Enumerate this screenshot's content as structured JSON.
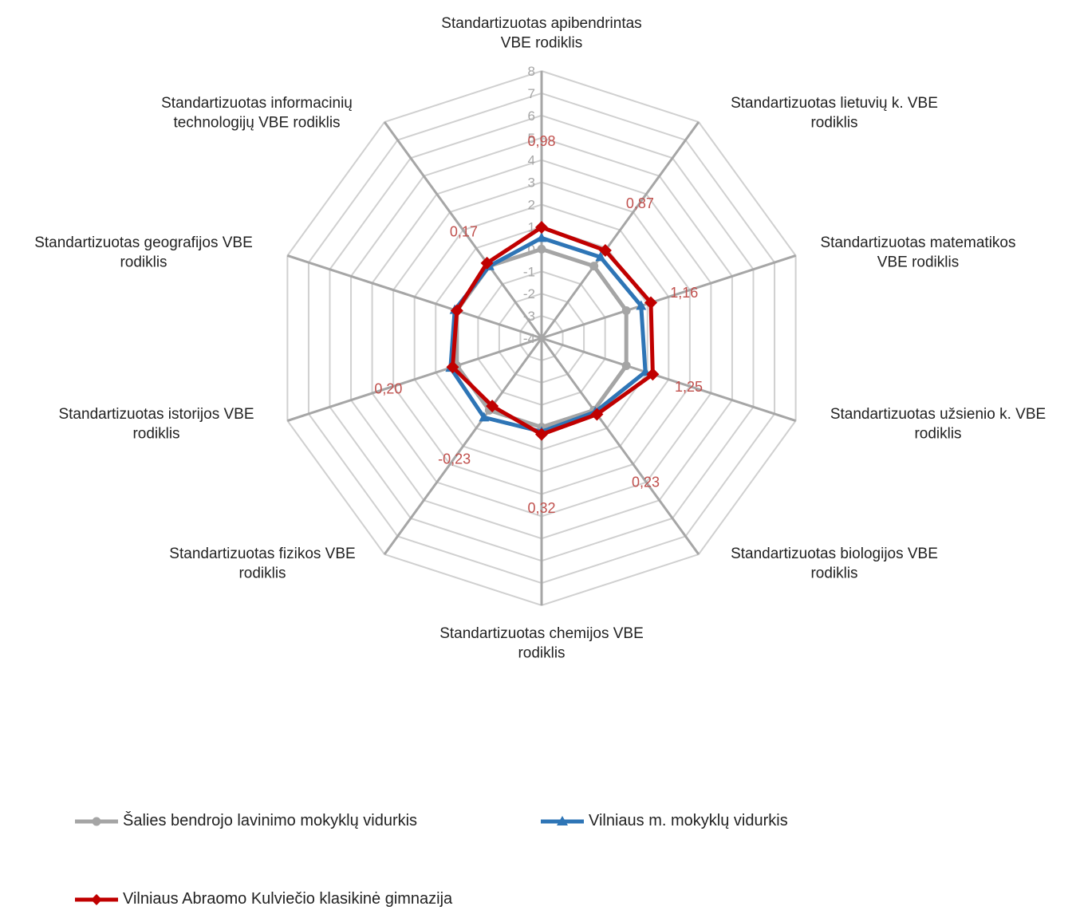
{
  "chart_data": {
    "type": "radar",
    "categories": [
      "Standartizuotas apibendrintas VBE rodiklis",
      "Standartizuotas lietuvių k. VBE rodiklis",
      "Standartizuotas matematikos VBE rodiklis",
      "Standartizuotas užsienio k. VBE rodiklis",
      "Standartizuotas biologijos VBE rodiklis",
      "Standartizuotas chemijos  VBE rodiklis",
      "Standartizuotas fizikos  VBE rodiklis",
      "Standartizuotas istorijos VBE rodiklis",
      "Standartizuotas geografijos VBE rodiklis",
      "Standartizuotas informacinių technologijų VBE rodiklis"
    ],
    "category_lines": [
      [
        "Standartizuotas apibendrintas",
        "VBE rodiklis"
      ],
      [
        "Standartizuotas lietuvių k. VBE",
        "rodiklis"
      ],
      [
        "Standartizuotas matematikos",
        "VBE rodiklis"
      ],
      [
        "Standartizuotas užsienio k. VBE",
        "rodiklis"
      ],
      [
        "Standartizuotas biologijos VBE",
        "rodiklis"
      ],
      [
        "Standartizuotas chemijos  VBE",
        "rodiklis"
      ],
      [
        "Standartizuotas fizikos  VBE",
        "rodiklis"
      ],
      [
        "Standartizuotas istorijos VBE",
        "rodiklis"
      ],
      [
        "Standartizuotas geografijos VBE",
        "rodiklis"
      ],
      [
        "Standartizuotas informacinių",
        "technologijų VBE rodiklis"
      ]
    ],
    "rlim": [
      -4,
      8
    ],
    "ticks": [
      -4,
      -3,
      -2,
      -1,
      0,
      1,
      2,
      3,
      4,
      5,
      6,
      7,
      8
    ],
    "grid": true,
    "legend_position": "bottom",
    "series": [
      {
        "name": "Šalies bendrojo lavinimo mokyklų vidurkis",
        "color": "#a5a5a5",
        "marker": "circle",
        "values": [
          0,
          0,
          0,
          0,
          0,
          0,
          0,
          0,
          0,
          0
        ]
      },
      {
        "name": "Vilniaus m. mokyklų vidurkis",
        "color": "#2e75b6",
        "marker": "triangle",
        "values": [
          0.5,
          0.5,
          0.7,
          0.9,
          0.1,
          0.2,
          0.4,
          0.3,
          0.1,
          0.0
        ]
      },
      {
        "name": "Vilniaus Abraomo Kulviečio klasikinė gimnazija",
        "color": "#c00000",
        "marker": "diamond",
        "values": [
          0.98,
          0.87,
          1.16,
          1.25,
          0.23,
          0.32,
          -0.23,
          0.2,
          0.0,
          0.17
        ],
        "data_labels": [
          "0,98",
          "0,87",
          "1,16",
          "1,25",
          "0,23",
          "0,32",
          "-0,23",
          "0,20",
          "",
          "0,17"
        ]
      }
    ]
  }
}
